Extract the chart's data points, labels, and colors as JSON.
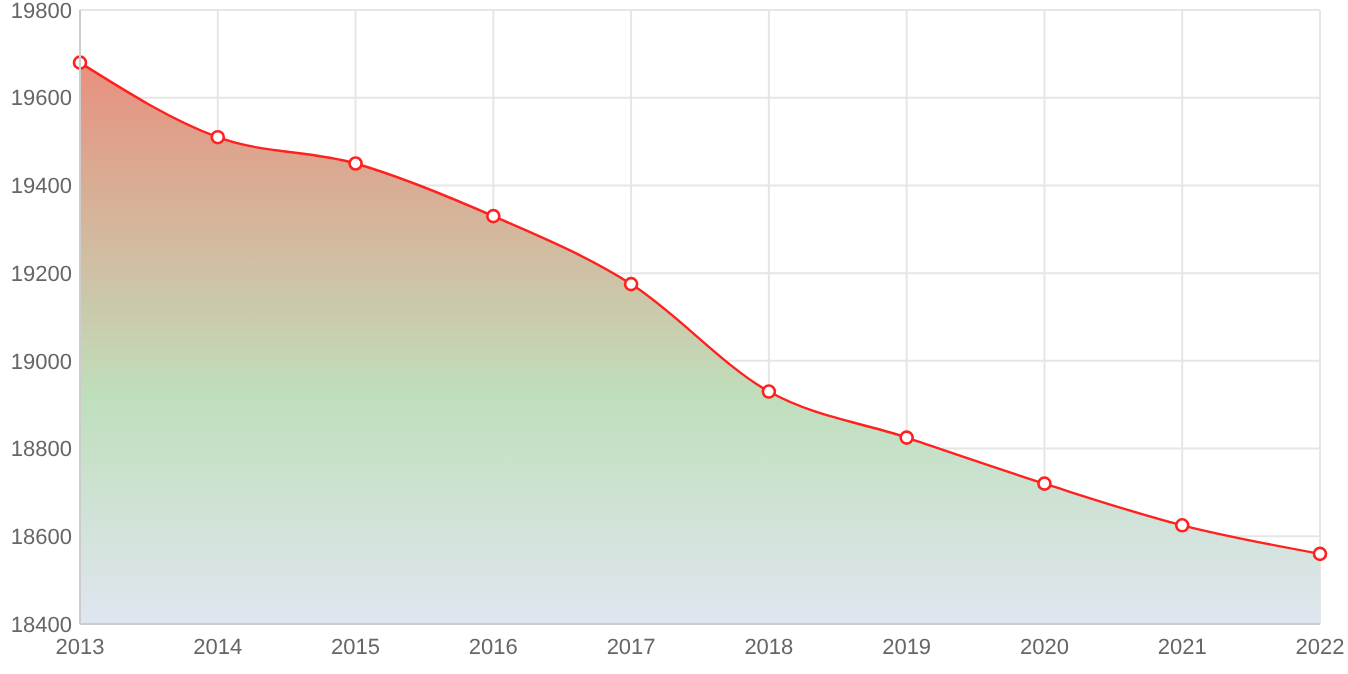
{
  "chart_data": {
    "type": "area",
    "categories": [
      "2013",
      "2014",
      "2015",
      "2016",
      "2017",
      "2018",
      "2019",
      "2020",
      "2021",
      "2022"
    ],
    "series": [
      {
        "color": "#ff2020",
        "values": [
          19680,
          19510,
          19450,
          19330,
          19175,
          18930,
          18825,
          18720,
          18625,
          18560
        ]
      }
    ],
    "ylim": [
      18400,
      19800
    ],
    "yticks": [
      18400,
      18600,
      18800,
      19000,
      19200,
      19400,
      19600,
      19800
    ],
    "grid": true,
    "marker": "circle"
  }
}
